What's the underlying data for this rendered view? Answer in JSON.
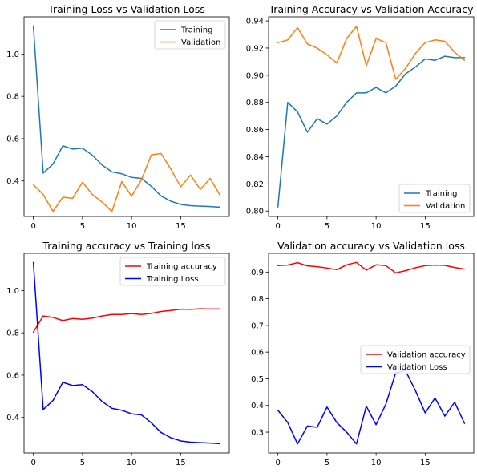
{
  "chart_data": [
    {
      "type": "line",
      "title": "Training Loss vs Validation Loss",
      "x": [
        0,
        1,
        2,
        3,
        4,
        5,
        6,
        7,
        8,
        9,
        10,
        11,
        12,
        13,
        14,
        15,
        16,
        17,
        18,
        19
      ],
      "xticks": [
        0,
        5,
        10,
        15
      ],
      "xlim": [
        -0.95,
        19.95
      ],
      "ylim": [
        0.232,
        1.176
      ],
      "yticks": [
        0.4,
        0.6,
        0.8,
        1.0
      ],
      "ytick_labels": [
        "0.4",
        "0.6",
        "0.8",
        "1.0"
      ],
      "legend": "top-right",
      "series": [
        {
          "name": "Training",
          "color": "#1f77b4",
          "values": [
            1.133,
            0.437,
            0.48,
            0.566,
            0.551,
            0.555,
            0.522,
            0.475,
            0.443,
            0.434,
            0.417,
            0.412,
            0.375,
            0.329,
            0.304,
            0.289,
            0.283,
            0.281,
            0.279,
            0.276
          ]
        },
        {
          "name": "Validation",
          "color": "#ff7f0e",
          "values": [
            0.382,
            0.336,
            0.256,
            0.323,
            0.318,
            0.394,
            0.336,
            0.3,
            0.256,
            0.397,
            0.328,
            0.405,
            0.523,
            0.53,
            0.456,
            0.372,
            0.428,
            0.36,
            0.412,
            0.333
          ]
        }
      ]
    },
    {
      "type": "line",
      "title": "Training Accuracy vs Validation Accuracy",
      "x": [
        0,
        1,
        2,
        3,
        4,
        5,
        6,
        7,
        8,
        9,
        10,
        11,
        12,
        13,
        14,
        15,
        16,
        17,
        18,
        19
      ],
      "xticks": [
        0,
        5,
        10,
        15
      ],
      "xlim": [
        -0.95,
        19.95
      ],
      "ylim": [
        0.796,
        0.943
      ],
      "yticks": [
        0.8,
        0.82,
        0.84,
        0.86,
        0.88,
        0.9,
        0.92,
        0.94
      ],
      "ytick_labels": [
        "0.80",
        "0.82",
        "0.84",
        "0.86",
        "0.88",
        "0.90",
        "0.92",
        "0.94"
      ],
      "legend": "bottom-right",
      "series": [
        {
          "name": "Training",
          "color": "#1f77b4",
          "values": [
            0.803,
            0.88,
            0.873,
            0.858,
            0.868,
            0.864,
            0.87,
            0.88,
            0.887,
            0.887,
            0.891,
            0.887,
            0.892,
            0.901,
            0.906,
            0.912,
            0.911,
            0.914,
            0.913,
            0.913
          ]
        },
        {
          "name": "Validation",
          "color": "#ff7f0e",
          "values": [
            0.924,
            0.926,
            0.935,
            0.923,
            0.92,
            0.915,
            0.909,
            0.927,
            0.936,
            0.907,
            0.927,
            0.924,
            0.897,
            0.905,
            0.916,
            0.924,
            0.926,
            0.925,
            0.917,
            0.911
          ]
        }
      ]
    },
    {
      "type": "line",
      "title": "Training accuracy vs Training loss",
      "x": [
        0,
        1,
        2,
        3,
        4,
        5,
        6,
        7,
        8,
        9,
        10,
        11,
        12,
        13,
        14,
        15,
        16,
        17,
        18,
        19
      ],
      "xticks": [
        0,
        5,
        10,
        15
      ],
      "xlim": [
        -0.95,
        19.95
      ],
      "ylim": [
        0.232,
        1.176
      ],
      "yticks": [
        0.4,
        0.6,
        0.8,
        1.0
      ],
      "ytick_labels": [
        "0.4",
        "0.6",
        "0.8",
        "1.0"
      ],
      "legend": "top-right",
      "series": [
        {
          "name": "Training accuracy",
          "color": "#ff0000",
          "values": [
            0.803,
            0.88,
            0.873,
            0.858,
            0.868,
            0.864,
            0.87,
            0.88,
            0.887,
            0.887,
            0.891,
            0.887,
            0.892,
            0.901,
            0.906,
            0.912,
            0.911,
            0.914,
            0.913,
            0.913
          ]
        },
        {
          "name": "Training Loss",
          "color": "#0000ff",
          "values": [
            1.133,
            0.437,
            0.48,
            0.566,
            0.551,
            0.555,
            0.522,
            0.475,
            0.443,
            0.434,
            0.417,
            0.412,
            0.375,
            0.329,
            0.304,
            0.289,
            0.283,
            0.281,
            0.279,
            0.276
          ]
        }
      ]
    },
    {
      "type": "line",
      "title": "Validation accuracy vs Validation loss",
      "x": [
        0,
        1,
        2,
        3,
        4,
        5,
        6,
        7,
        8,
        9,
        10,
        11,
        12,
        13,
        14,
        15,
        16,
        17,
        18,
        19
      ],
      "xticks": [
        0,
        5,
        10,
        15
      ],
      "xlim": [
        -0.95,
        19.95
      ],
      "ylim": [
        0.222,
        0.97
      ],
      "yticks": [
        0.3,
        0.4,
        0.5,
        0.6,
        0.7,
        0.8,
        0.9
      ],
      "ytick_labels": [
        "0.3",
        "0.4",
        "0.5",
        "0.6",
        "0.7",
        "0.8",
        "0.9"
      ],
      "legend": "center-right",
      "series": [
        {
          "name": "Validation accuracy",
          "color": "#ff0000",
          "values": [
            0.924,
            0.926,
            0.935,
            0.923,
            0.92,
            0.915,
            0.909,
            0.927,
            0.936,
            0.907,
            0.927,
            0.924,
            0.897,
            0.905,
            0.916,
            0.924,
            0.926,
            0.925,
            0.917,
            0.911
          ]
        },
        {
          "name": "Validation Loss",
          "color": "#0000ff",
          "values": [
            0.382,
            0.336,
            0.256,
            0.323,
            0.318,
            0.394,
            0.336,
            0.3,
            0.256,
            0.397,
            0.328,
            0.405,
            0.523,
            0.53,
            0.456,
            0.372,
            0.428,
            0.36,
            0.412,
            0.333
          ]
        }
      ]
    }
  ]
}
